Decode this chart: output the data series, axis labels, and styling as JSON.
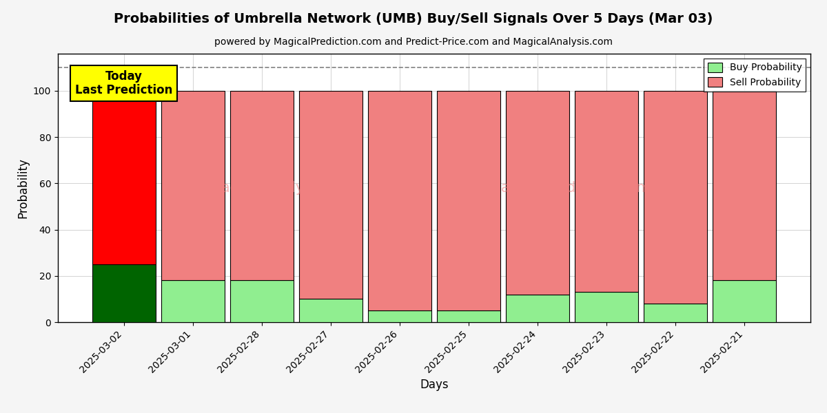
{
  "title": "Probabilities of Umbrella Network (UMB) Buy/Sell Signals Over 5 Days (Mar 03)",
  "subtitle": "powered by MagicalPrediction.com and Predict-Price.com and MagicalAnalysis.com",
  "xlabel": "Days",
  "ylabel": "Probability",
  "categories": [
    "2025-03-02",
    "2025-03-01",
    "2025-02-28",
    "2025-02-27",
    "2025-02-26",
    "2025-02-25",
    "2025-02-24",
    "2025-02-23",
    "2025-02-22",
    "2025-02-21"
  ],
  "buy_probs": [
    25,
    18,
    18,
    10,
    5,
    5,
    12,
    13,
    8,
    18
  ],
  "sell_probs": [
    75,
    82,
    82,
    90,
    95,
    95,
    88,
    87,
    92,
    82
  ],
  "today_buy_color": "#006400",
  "today_sell_color": "#FF0000",
  "other_buy_color": "#90EE90",
  "other_sell_color": "#F08080",
  "today_annotation_bg": "#FFFF00",
  "today_annotation_text": "Today\nLast Prediction",
  "dashed_line_y": 110,
  "ylim": [
    0,
    116
  ],
  "yticks": [
    0,
    20,
    40,
    60,
    80,
    100
  ],
  "legend_buy_label": "Buy Probability",
  "legend_sell_label": "Sell Probability",
  "bar_edge_color": "black",
  "bar_linewidth": 0.8,
  "bar_width": 0.92,
  "fig_bg_color": "#f5f5f5",
  "plot_bg_color": "#ffffff"
}
